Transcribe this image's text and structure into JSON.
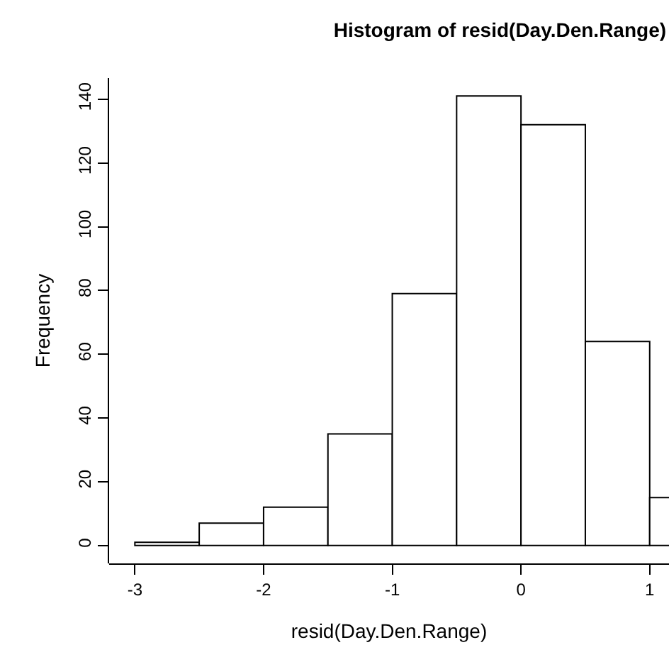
{
  "chart_data": {
    "type": "histogram",
    "title": "Histogram of resid(Day.Den.Range)",
    "xlabel": "resid(Day.Den.Range)",
    "ylabel": "Frequency",
    "bins": [
      -3,
      -2.5,
      -2,
      -1.5,
      -1,
      -0.5,
      0,
      0.5,
      1,
      1.5
    ],
    "values": [
      1,
      7,
      12,
      35,
      79,
      141,
      132,
      64,
      15
    ],
    "color": "#ffffff",
    "xlim": [
      -3.2,
      1.15
    ],
    "xticks": [
      -3,
      -2,
      -1,
      0,
      1
    ],
    "ylim": [
      -5.64,
      146.64
    ],
    "yticks": [
      0,
      20,
      40,
      60,
      80,
      100,
      120,
      140
    ],
    "grid": false
  }
}
